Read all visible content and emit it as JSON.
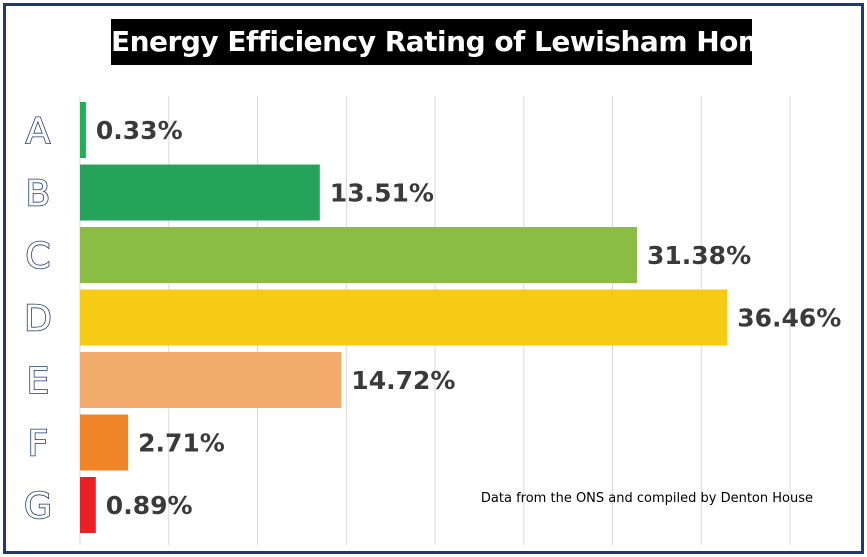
{
  "chart_data": {
    "type": "bar",
    "orientation": "horizontal",
    "title": "Energy Efficiency Rating of Lewisham Homes",
    "categories": [
      "A",
      "B",
      "C",
      "D",
      "E",
      "F",
      "G"
    ],
    "values": [
      0.33,
      13.51,
      31.38,
      36.46,
      14.72,
      2.71,
      0.89
    ],
    "value_labels": [
      "0.33%",
      "13.51%",
      "31.38%",
      "36.46%",
      "14.72%",
      "2.71%",
      "0.89%"
    ],
    "bar_colors": [
      "#1fb153",
      "#26a35b",
      "#8bbd44",
      "#f6cb16",
      "#f2ab6c",
      "#ef8528",
      "#e92127"
    ],
    "xlim": [
      0,
      40
    ],
    "grid": true,
    "xlabel": "",
    "ylabel": "",
    "source": "Data from the ONS and compiled by Denton House"
  }
}
